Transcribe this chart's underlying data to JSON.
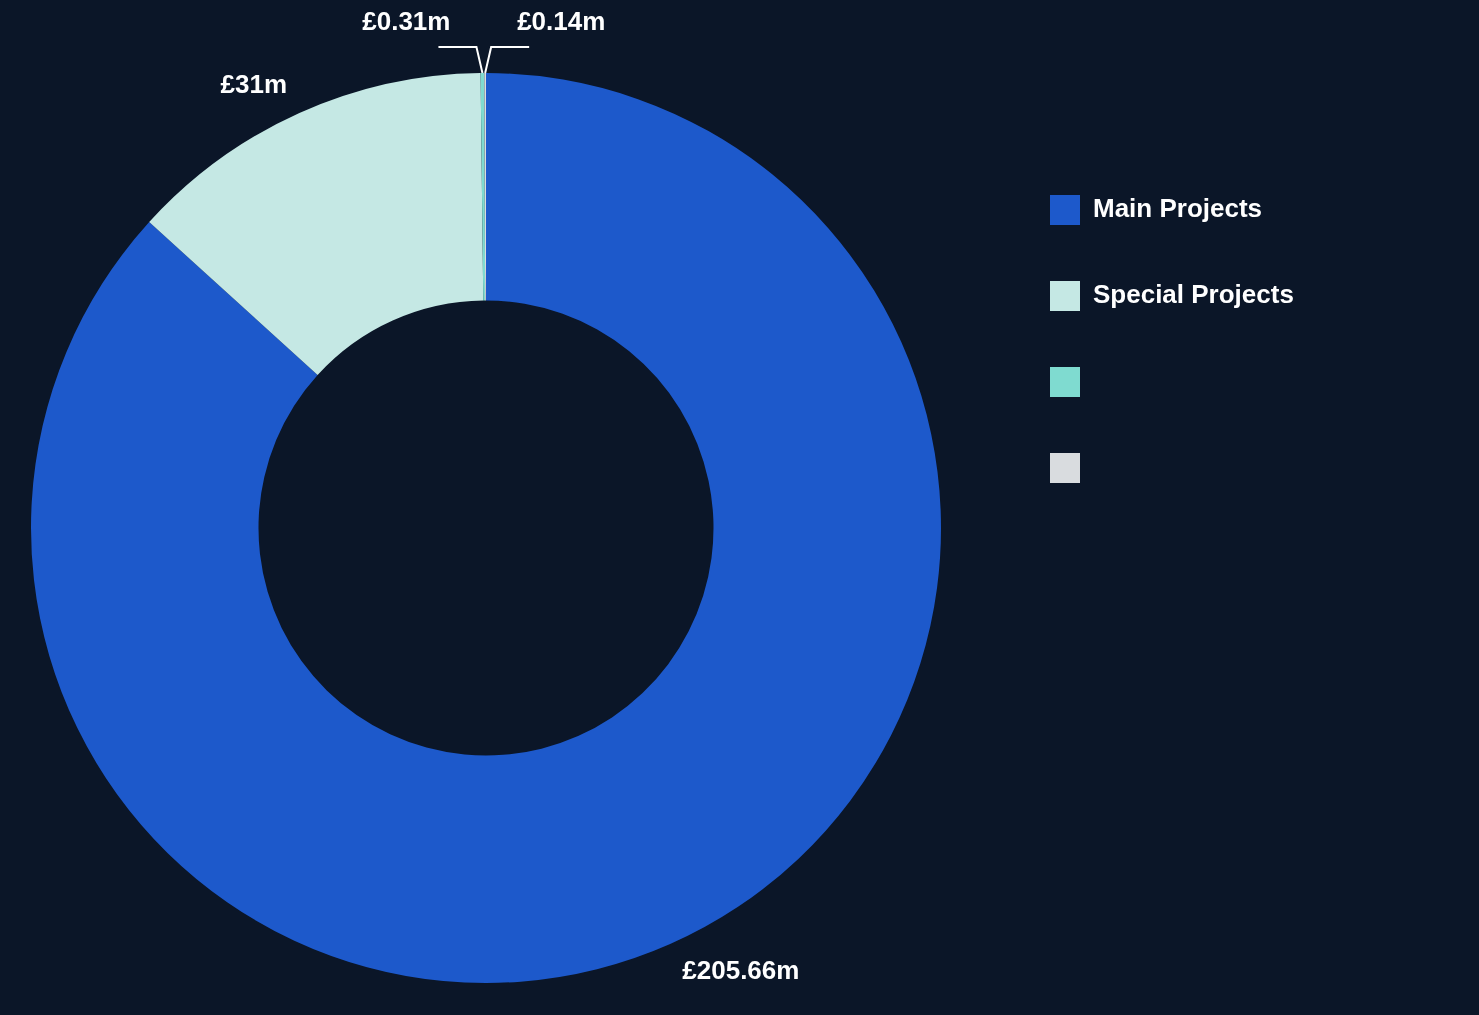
{
  "chart_data": {
    "type": "donut",
    "categories": [
      "Main Projects",
      "Special Projects",
      null,
      null
    ],
    "values": [
      205.66,
      31,
      0.31,
      0.14
    ],
    "colors": [
      "#1d59cb",
      "#c5e8e4",
      "#7fdbd0",
      "#d9dcdf"
    ],
    "value_labels": [
      "£205.66m",
      "£31m",
      "£0.31m",
      "£0.14m"
    ],
    "legend": "right"
  }
}
